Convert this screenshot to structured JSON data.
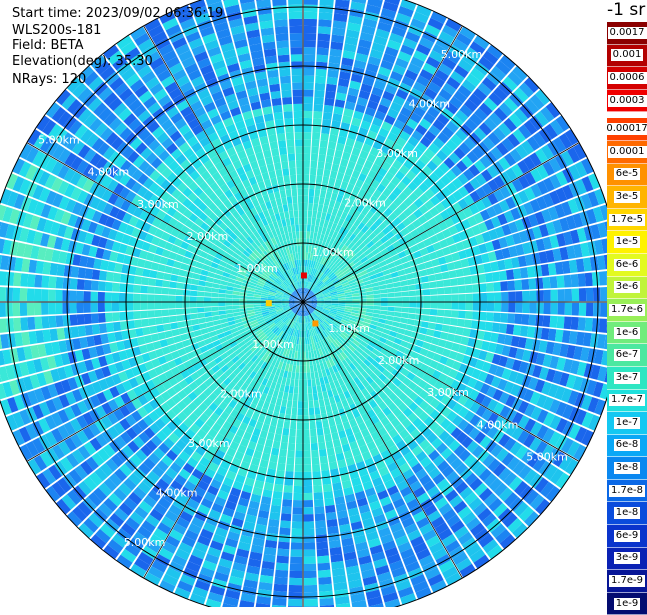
{
  "info": {
    "start_time": "Start time: 2023/09/02 06:36:19",
    "site": "WLS200s-181",
    "field": "Field: BETA",
    "elevation": "Elevation(deg): 35.30",
    "nrays": "NRays: 120"
  },
  "colorbar": {
    "unit": "-1 sr",
    "upper": [
      {
        "label": "0.0017",
        "color": "#8b0000"
      },
      {
        "label": "0.001",
        "color": "#b30000"
      },
      {
        "label": "0.0006",
        "color": "#d40000"
      },
      {
        "label": "0.0003",
        "color": "#f00000"
      }
    ],
    "lower": [
      {
        "label": "0.00017",
        "color": "#ff4000"
      },
      {
        "label": "0.0001",
        "color": "#ff6a00"
      },
      {
        "label": "6e-5",
        "color": "#ff9100"
      },
      {
        "label": "3e-5",
        "color": "#ffb400"
      },
      {
        "label": "1.7e-5",
        "color": "#ffd600"
      },
      {
        "label": "1e-5",
        "color": "#fff200"
      },
      {
        "label": "6e-6",
        "color": "#e3fa20"
      },
      {
        "label": "3e-6",
        "color": "#c0f43a"
      },
      {
        "label": "1.7e-6",
        "color": "#98ef58"
      },
      {
        "label": "1e-6",
        "color": "#70ec7c"
      },
      {
        "label": "6e-7",
        "color": "#4ce8a0"
      },
      {
        "label": "3e-7",
        "color": "#2ee6c2"
      },
      {
        "label": "1.7e-7",
        "color": "#1fe0dc"
      },
      {
        "label": "1e-7",
        "color": "#14c8f2"
      },
      {
        "label": "6e-8",
        "color": "#0aa8f6"
      },
      {
        "label": "3e-8",
        "color": "#0a88f0"
      },
      {
        "label": "1.7e-8",
        "color": "#0a68e6"
      },
      {
        "label": "1e-8",
        "color": "#0a4cdc"
      },
      {
        "label": "6e-9",
        "color": "#0a34cc"
      },
      {
        "label": "3e-9",
        "color": "#0a22b4"
      },
      {
        "label": "1.7e-9",
        "color": "#071696"
      },
      {
        "label": "1e-9",
        "color": "#040c70"
      }
    ]
  },
  "ring_labels": [
    "1.00km",
    "2.00km",
    "3.00km",
    "4.00km",
    "5.00km"
  ],
  "ring_km": [
    1,
    2,
    3,
    4,
    5
  ],
  "max_range_km": 5.2,
  "nrays": 120,
  "field_palette": [
    "#0c3ec8",
    "#1050e0",
    "#1a66ec",
    "#1c84f2",
    "#22a4f4",
    "#1ec4ee",
    "#22dcea",
    "#3ae8d8",
    "#58eec0",
    "#80f0a0"
  ],
  "hotspots": [
    {
      "az_deg": 2,
      "range_km": 0.45,
      "color": "#e60000",
      "label": ""
    },
    {
      "az_deg": 268,
      "range_km": 0.58,
      "color": "#ffcc00",
      "label": ""
    },
    {
      "az_deg": 150,
      "range_km": 0.42,
      "color": "#ff9900",
      "label": ""
    }
  ]
}
